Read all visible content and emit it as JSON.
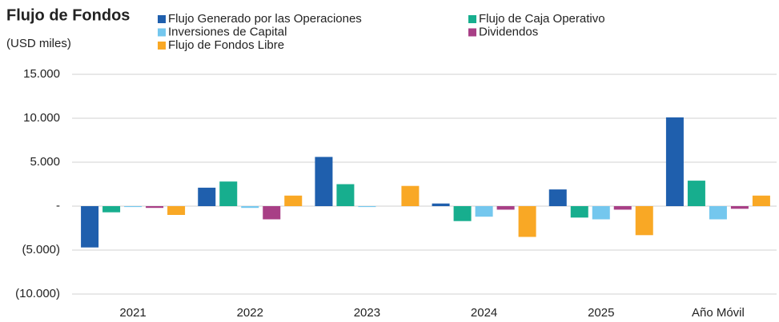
{
  "chart_data": {
    "type": "bar",
    "title": "Flujo de Fondos",
    "subtitle": "(USD miles)",
    "categories": [
      "2021",
      "2022",
      "2023",
      "2024",
      "2025",
      "Año Móvil"
    ],
    "series": [
      {
        "name": "Flujo Generado por las Operaciones",
        "color": "#1f5fad",
        "values": [
          -4700,
          2100,
          5600,
          300,
          1900,
          10100
        ]
      },
      {
        "name": "Flujo de Caja Operativo",
        "color": "#17ae8e",
        "values": [
          -700,
          2800,
          2500,
          -1700,
          -1300,
          2900
        ]
      },
      {
        "name": "Inversiones de Capital",
        "color": "#74c7ee",
        "values": [
          -100,
          -200,
          -100,
          -1200,
          -1500,
          -1500
        ]
      },
      {
        "name": "Dividendos",
        "color": "#a83f86",
        "values": [
          -200,
          -1500,
          0,
          -400,
          -400,
          -300
        ]
      },
      {
        "name": "Flujo de Fondos Libre",
        "color": "#f9a825",
        "values": [
          -1000,
          1200,
          2300,
          -3500,
          -3300,
          1200
        ]
      }
    ],
    "ylim": [
      -10000,
      15000
    ],
    "yticks": [
      {
        "value": -10000,
        "label": "(10.000)"
      },
      {
        "value": -5000,
        "label": "(5.000)"
      },
      {
        "value": 0,
        "label": "-"
      },
      {
        "value": 5000,
        "label": "5.000"
      },
      {
        "value": 10000,
        "label": "10.000"
      },
      {
        "value": 15000,
        "label": "15.000"
      }
    ],
    "grid": true
  }
}
